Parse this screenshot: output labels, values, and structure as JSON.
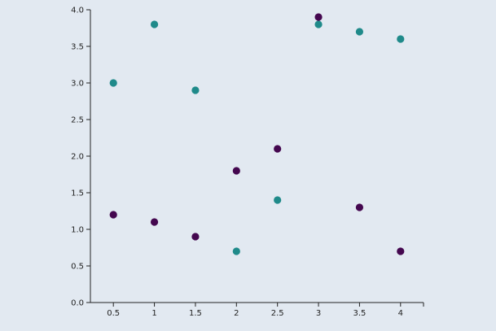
{
  "chart_data": {
    "type": "scatter",
    "title": "",
    "xlabel": "",
    "ylabel": "",
    "xlim": [
      0.22,
      4.28
    ],
    "ylim": [
      0,
      4.0
    ],
    "x_ticks": [
      {
        "value": 0.5,
        "label": "0.5"
      },
      {
        "value": 1,
        "label": "1"
      },
      {
        "value": 1.5,
        "label": "1.5"
      },
      {
        "value": 2,
        "label": "2"
      },
      {
        "value": 2.5,
        "label": "2.5"
      },
      {
        "value": 3,
        "label": "3"
      },
      {
        "value": 3.5,
        "label": "3.5"
      },
      {
        "value": 4,
        "label": "4"
      }
    ],
    "y_ticks": [
      {
        "value": 0.0,
        "label": "0.0"
      },
      {
        "value": 0.5,
        "label": "0.5"
      },
      {
        "value": 1.0,
        "label": "1.0"
      },
      {
        "value": 1.5,
        "label": "1.5"
      },
      {
        "value": 2.0,
        "label": "2.0"
      },
      {
        "value": 2.5,
        "label": "2.5"
      },
      {
        "value": 3.0,
        "label": "3.0"
      },
      {
        "value": 3.5,
        "label": "3.5"
      },
      {
        "value": 4.0,
        "label": "4.0"
      }
    ],
    "grid": false,
    "legend": "none",
    "series": [
      {
        "color": "#1f8a8a",
        "points": [
          {
            "x": 0.5,
            "y": 3.0
          },
          {
            "x": 1,
            "y": 3.8
          },
          {
            "x": 1.5,
            "y": 2.9
          },
          {
            "x": 2,
            "y": 0.7
          },
          {
            "x": 2.5,
            "y": 1.4
          },
          {
            "x": 3,
            "y": 3.8
          },
          {
            "x": 3.5,
            "y": 3.7
          },
          {
            "x": 4,
            "y": 3.6
          }
        ]
      },
      {
        "color": "#44074f",
        "points": [
          {
            "x": 0.5,
            "y": 1.2
          },
          {
            "x": 1,
            "y": 1.1
          },
          {
            "x": 1.5,
            "y": 0.9
          },
          {
            "x": 2,
            "y": 1.8
          },
          {
            "x": 2.5,
            "y": 2.1
          },
          {
            "x": 3,
            "y": 3.9
          },
          {
            "x": 3.5,
            "y": 1.3
          },
          {
            "x": 4,
            "y": 0.7
          }
        ]
      }
    ]
  }
}
